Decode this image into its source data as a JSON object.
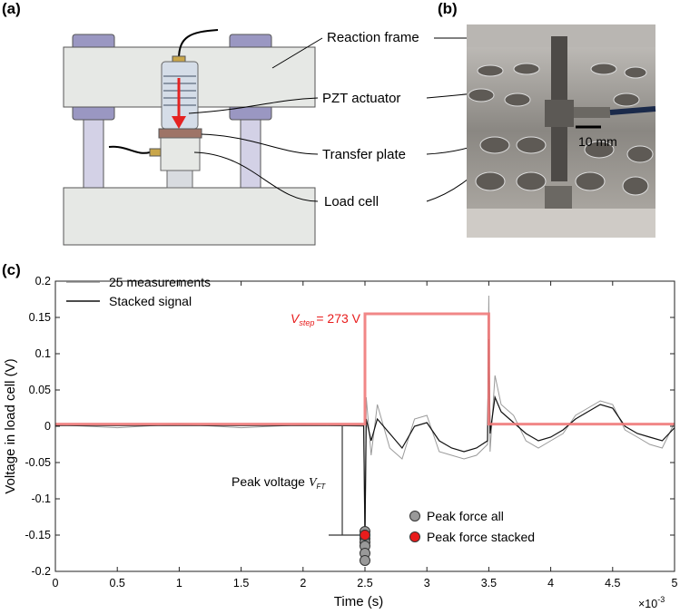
{
  "panels": {
    "a": "(a)",
    "b": "(b)",
    "c": "(c)"
  },
  "diagram": {
    "labels": [
      "Reaction frame",
      "PZT actuator",
      "Transfer plate",
      "Load cell"
    ]
  },
  "photo": {
    "scale_bar": "10 mm"
  },
  "chart_data": {
    "type": "line",
    "xlabel": "Time (s)",
    "ylabel": "Voltage in load cell (V)",
    "x_exponent_label": {
      "base": "×10",
      "exponent": "-3"
    },
    "xlim": [
      0,
      5
    ],
    "xticks": [
      0,
      0.5,
      1,
      1.5,
      2,
      2.5,
      3,
      3.5,
      4,
      4.5,
      5
    ],
    "ylim": [
      -0.2,
      0.2
    ],
    "yticks": [
      -0.2,
      -0.15,
      -0.1,
      -0.05,
      0,
      0.05,
      0.1,
      0.15,
      0.2
    ],
    "annotations": {
      "v_step": {
        "symbol": "V",
        "subscript": "step",
        "text": "= 273 V"
      },
      "peak_voltage": {
        "text": "Peak voltage",
        "symbol": "V",
        "subscript": "FT"
      }
    },
    "series": [
      {
        "name": "25 measurements",
        "kind": "line",
        "color": "#9a9a9a",
        "x": [
          0,
          0.5,
          1,
          1.5,
          2,
          2.49,
          2.5,
          2.51,
          2.55,
          2.6,
          2.7,
          2.8,
          2.9,
          3.0,
          3.1,
          3.2,
          3.3,
          3.4,
          3.49,
          3.5,
          3.51,
          3.55,
          3.6,
          3.7,
          3.8,
          3.9,
          4.0,
          4.1,
          4.2,
          4.3,
          4.4,
          4.5,
          4.6,
          4.7,
          4.8,
          4.9,
          5.0
        ],
        "values": [
          0.002,
          -0.002,
          0.003,
          -0.002,
          0.002,
          0,
          -0.185,
          0.04,
          -0.04,
          0.03,
          -0.03,
          -0.045,
          0.01,
          0.015,
          -0.035,
          -0.04,
          -0.045,
          -0.04,
          -0.025,
          0.18,
          -0.035,
          0.07,
          0.03,
          0.015,
          -0.02,
          -0.03,
          -0.02,
          -0.01,
          0.015,
          0.025,
          0.035,
          0.03,
          -0.005,
          -0.015,
          -0.025,
          -0.03,
          0.005
        ]
      },
      {
        "name": "Stacked signal",
        "kind": "line",
        "color": "#111111",
        "x": [
          0,
          0.5,
          1,
          1.5,
          2,
          2.49,
          2.5,
          2.51,
          2.55,
          2.6,
          2.7,
          2.8,
          2.9,
          3.0,
          3.1,
          3.2,
          3.3,
          3.4,
          3.49,
          3.5,
          3.51,
          3.55,
          3.6,
          3.7,
          3.8,
          3.9,
          4.0,
          4.1,
          4.2,
          4.3,
          4.4,
          4.5,
          4.6,
          4.7,
          4.8,
          4.9,
          5.0
        ],
        "values": [
          0.001,
          0.001,
          0.001,
          0.001,
          0.001,
          0.001,
          -0.15,
          0.01,
          -0.02,
          0.01,
          -0.01,
          -0.03,
          0,
          0.005,
          -0.02,
          -0.03,
          -0.035,
          -0.03,
          -0.02,
          0.12,
          -0.01,
          0.04,
          0.02,
          0.005,
          -0.01,
          -0.02,
          -0.015,
          -0.005,
          0.01,
          0.02,
          0.03,
          0.025,
          0,
          -0.01,
          -0.015,
          -0.02,
          -0.002
        ]
      },
      {
        "name": null,
        "kind": "step",
        "color": "#f07a7a",
        "x": [
          0,
          2.5,
          2.5,
          3.5,
          3.5,
          5
        ],
        "values": [
          0.003,
          0.003,
          0.155,
          0.155,
          0.003,
          0.003
        ]
      },
      {
        "name": "Peak force all",
        "kind": "scatter",
        "color": "#999999",
        "x": [
          2.5,
          2.5,
          2.5,
          2.5,
          2.5,
          2.5,
          2.5
        ],
        "values": [
          -0.145,
          -0.15,
          -0.155,
          -0.16,
          -0.165,
          -0.175,
          -0.185
        ]
      },
      {
        "name": "Peak force stacked",
        "kind": "scatter",
        "color": "#e81c1c",
        "x": [
          2.5
        ],
        "values": [
          -0.15
        ]
      }
    ]
  }
}
